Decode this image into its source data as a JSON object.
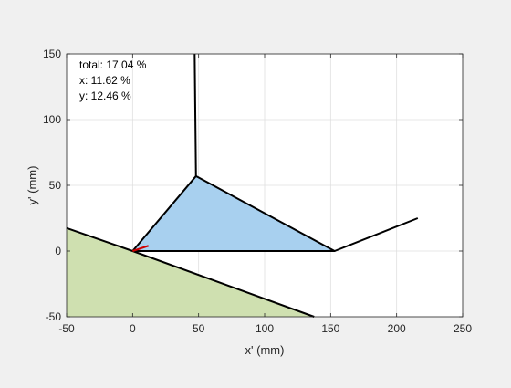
{
  "chart_data": {
    "type": "line",
    "title": "",
    "xlabel": "x' (mm)",
    "ylabel": "y' (mm)",
    "xlim": [
      -50,
      250
    ],
    "ylim": [
      -50,
      150
    ],
    "xticks": [
      -50,
      0,
      50,
      100,
      150,
      200,
      250
    ],
    "yticks": [
      -50,
      0,
      50,
      100,
      150
    ],
    "grid": true,
    "annotations": [
      {
        "label": "total",
        "text": "total: 17.04 %"
      },
      {
        "label": "x",
        "text": "x: 11.62 %"
      },
      {
        "label": "y",
        "text": "y: 12.46 %"
      }
    ],
    "regions": [
      {
        "name": "ground-region",
        "fill": "#cfe0b0",
        "points": [
          [
            -50,
            17.5
          ],
          [
            0,
            0
          ],
          [
            137.5,
            -50
          ],
          [
            -50,
            -50
          ]
        ]
      },
      {
        "name": "triangle-region",
        "fill": "#a8d0ef",
        "points": [
          [
            0,
            0
          ],
          [
            48,
            57
          ],
          [
            153,
            0
          ]
        ]
      }
    ],
    "series": [
      {
        "name": "",
        "color": "#000000",
        "points": [
          [
            -50,
            17.5
          ],
          [
            0,
            0
          ],
          [
            137.5,
            -50
          ]
        ]
      },
      {
        "name": "",
        "color": "#000000",
        "points": [
          [
            0,
            0
          ],
          [
            48,
            57
          ],
          [
            153,
            0
          ],
          [
            0,
            0
          ]
        ]
      },
      {
        "name": "",
        "color": "#000000",
        "points": [
          [
            47,
            150
          ],
          [
            48,
            57
          ]
        ]
      },
      {
        "name": "",
        "color": "#000000",
        "points": [
          [
            153,
            0
          ],
          [
            216,
            25
          ]
        ]
      },
      {
        "name": "",
        "color": "#d00000",
        "points": [
          [
            0,
            0
          ],
          [
            12,
            4
          ]
        ]
      }
    ]
  }
}
